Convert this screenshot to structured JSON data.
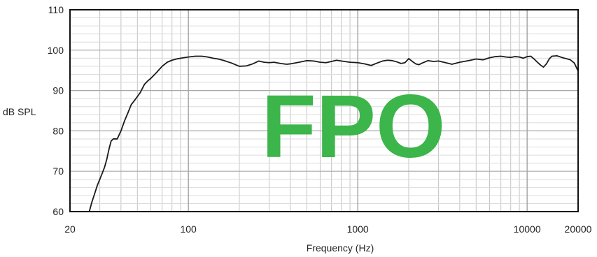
{
  "chart_data": {
    "type": "line",
    "xscale": "log",
    "xlim": [
      20,
      20000
    ],
    "ylim": [
      60,
      110
    ],
    "xlabel": "Frequency (Hz)",
    "ylabel": "dB SPL",
    "xticks": [
      20,
      100,
      1000,
      10000,
      20000
    ],
    "xtick_labels": [
      "20",
      "100",
      "1000",
      "10000",
      "20000"
    ],
    "yticks": [
      60,
      70,
      80,
      90,
      100,
      110
    ],
    "ytick_labels": [
      "60",
      "70",
      "80",
      "90",
      "100",
      "110"
    ],
    "grid": true,
    "watermark": "FPO",
    "watermark_color": "#3cb54a",
    "line_color": "#1a1a1a",
    "series": [
      {
        "x": [
          26,
          27,
          28,
          29,
          30,
          31,
          32,
          33,
          34,
          35,
          36,
          38,
          40,
          42,
          44,
          46,
          48,
          50,
          52,
          55,
          58,
          60,
          65,
          70,
          75,
          80,
          85,
          90,
          100,
          110,
          120,
          130,
          140,
          150,
          160,
          180,
          200,
          220,
          240,
          260,
          280,
          300,
          320,
          350,
          380,
          400,
          450,
          500,
          550,
          600,
          650,
          700,
          750,
          800,
          900,
          1000,
          1100,
          1200,
          1300,
          1400,
          1500,
          1600,
          1700,
          1800,
          1900,
          2000,
          2100,
          2200,
          2300,
          2400,
          2600,
          2800,
          3000,
          3300,
          3600,
          4000,
          4500,
          5000,
          5500,
          6000,
          6500,
          7000,
          7500,
          8000,
          8500,
          9000,
          9500,
          10000,
          10500,
          11000,
          11500,
          12000,
          12500,
          13000,
          13500,
          14000,
          15000,
          16000,
          17000,
          18000,
          19000,
          20000
        ],
        "y": [
          60,
          62.5,
          64.5,
          66.5,
          68,
          69.5,
          71,
          73,
          75.5,
          77.5,
          78,
          78,
          80,
          82.5,
          84.5,
          86.5,
          87.5,
          88.5,
          89.5,
          91.5,
          92.5,
          93,
          94.5,
          96,
          97,
          97.5,
          97.8,
          98,
          98.3,
          98.5,
          98.5,
          98.3,
          98,
          97.8,
          97.5,
          96.8,
          96,
          96.1,
          96.6,
          97.3,
          97,
          96.9,
          97,
          96.7,
          96.5,
          96.6,
          97,
          97.4,
          97.3,
          97,
          96.9,
          97.2,
          97.5,
          97.3,
          97,
          96.9,
          96.6,
          96.2,
          96.8,
          97.3,
          97.5,
          97.4,
          97.1,
          96.7,
          96.9,
          97.9,
          97.2,
          96.6,
          96.4,
          96.8,
          97.4,
          97.2,
          97.3,
          96.9,
          96.5,
          97,
          97.4,
          97.8,
          97.6,
          98.1,
          98.4,
          98.5,
          98.3,
          98.2,
          98.4,
          98.3,
          98,
          98.4,
          98.5,
          97.8,
          97,
          96.3,
          95.8,
          96.6,
          97.8,
          98.5,
          98.6,
          98.2,
          97.9,
          97.6,
          96.8,
          94.8
        ]
      }
    ]
  }
}
